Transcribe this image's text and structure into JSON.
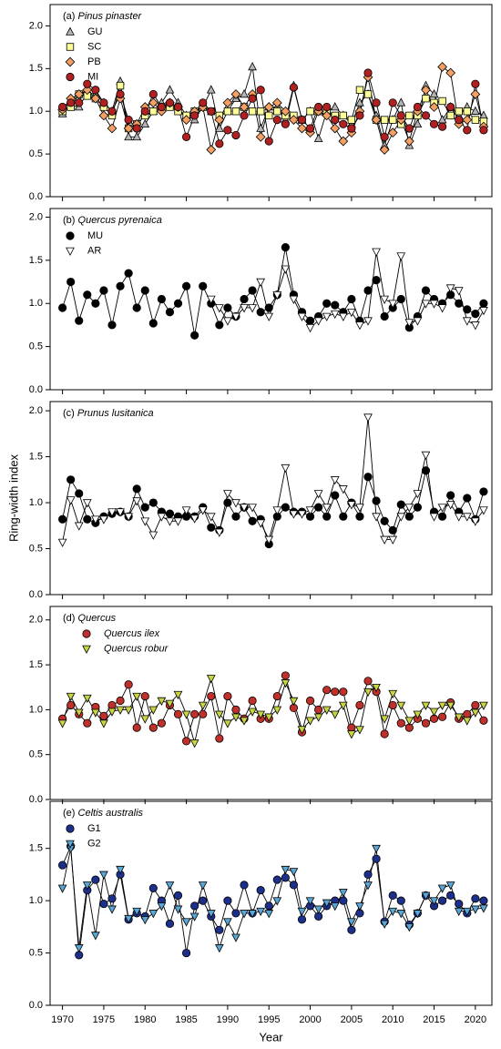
{
  "chart_data": [
    {
      "type": "line",
      "label": "(a)",
      "title": "Pinus pinaster",
      "x": [
        1970,
        1971,
        1972,
        1973,
        1974,
        1975,
        1976,
        1977,
        1978,
        1979,
        1980,
        1981,
        1982,
        1983,
        1984,
        1985,
        1986,
        1987,
        1988,
        1989,
        1990,
        1991,
        1992,
        1993,
        1994,
        1995,
        1996,
        1997,
        1998,
        1999,
        2000,
        2001,
        2002,
        2003,
        2004,
        2005,
        2006,
        2007,
        2008,
        2009,
        2010,
        2011,
        2012,
        2013,
        2014,
        2015,
        2016,
        2017,
        2018,
        2019,
        2020,
        2021
      ],
      "xlim": [
        1968.5,
        2022
      ],
      "ylim": [
        0,
        2.25
      ],
      "yticks": [
        {
          "value": 0,
          "label": "0.0"
        },
        {
          "value": 0.5,
          "label": "0.5"
        },
        {
          "value": 1,
          "label": "1.0"
        },
        {
          "value": 1.5,
          "label": "1.5"
        },
        {
          "value": 2,
          "label": "2.0"
        }
      ],
      "series": [
        {
          "name": "GU",
          "marker": "triangle-up",
          "color": "#b4b4b4",
          "values": [
            0.97,
            1.07,
            1.05,
            1.22,
            1.2,
            1.1,
            1.0,
            1.35,
            0.7,
            0.7,
            0.85,
            1.0,
            1.1,
            1.25,
            1.1,
            0.95,
            0.9,
            1.05,
            1.25,
            0.8,
            1.0,
            1.15,
            1.2,
            1.52,
            0.8,
            1.05,
            1.05,
            0.9,
            1.3,
            0.9,
            1.0,
            0.68,
            1.0,
            1.05,
            0.95,
            0.85,
            1.1,
            1.2,
            0.95,
            0.6,
            0.9,
            1.1,
            0.6,
            0.85,
            1.3,
            1.2,
            0.9,
            1.05,
            0.95,
            1.05,
            1.0,
            0.95
          ]
        },
        {
          "name": "SC",
          "marker": "square",
          "color": "#ffff99",
          "values": [
            1.0,
            1.05,
            1.2,
            1.18,
            1.15,
            1.05,
            0.95,
            1.3,
            0.8,
            0.85,
            0.95,
            1.0,
            1.05,
            1.05,
            1.0,
            0.95,
            1.0,
            1.05,
            1.0,
            0.95,
            1.0,
            1.0,
            1.05,
            1.0,
            1.0,
            0.95,
            1.0,
            0.95,
            0.95,
            0.9,
            1.0,
            1.0,
            1.0,
            0.95,
            0.95,
            0.9,
            1.25,
            1.2,
            0.9,
            0.9,
            0.9,
            0.85,
            0.95,
            0.95,
            1.15,
            1.1,
            1.12,
            0.95,
            1.0,
            1.0,
            0.9,
            0.88
          ]
        },
        {
          "name": "PB",
          "marker": "diamond",
          "color": "#f4a064",
          "values": [
            1.02,
            1.15,
            1.2,
            1.25,
            1.15,
            0.95,
            0.8,
            1.15,
            0.8,
            0.85,
            1.05,
            1.1,
            1.0,
            1.1,
            1.05,
            0.9,
            1.0,
            1.05,
            0.55,
            0.9,
            1.1,
            1.2,
            1.05,
            1.2,
            0.7,
            1.05,
            1.1,
            1.0,
            0.9,
            0.8,
            0.75,
            1.0,
            0.95,
            0.8,
            0.65,
            0.75,
            1.0,
            1.4,
            0.9,
            0.55,
            0.75,
            0.9,
            0.65,
            1.0,
            1.25,
            1.05,
            1.52,
            1.45,
            0.85,
            0.9,
            1.2,
            0.82
          ]
        },
        {
          "name": "MI",
          "marker": "circle",
          "color": "#b02020",
          "values": [
            1.05,
            1.1,
            1.1,
            1.32,
            1.25,
            1.1,
            1.0,
            1.2,
            0.9,
            0.8,
            1.0,
            1.2,
            1.05,
            1.1,
            1.05,
            0.7,
            0.95,
            1.1,
            1.0,
            0.62,
            0.78,
            0.72,
            0.95,
            1.15,
            1.25,
            0.65,
            0.9,
            0.85,
            1.28,
            0.9,
            0.8,
            1.05,
            1.05,
            0.9,
            0.85,
            0.8,
            0.95,
            1.45,
            1.1,
            0.7,
            1.1,
            0.95,
            0.8,
            1.05,
            0.95,
            0.85,
            0.82,
            1.05,
            0.9,
            0.78,
            1.32,
            0.78
          ]
        }
      ]
    },
    {
      "type": "line",
      "label": "(b)",
      "title": "Quercus pyrenaica",
      "x": [
        1970,
        1971,
        1972,
        1973,
        1974,
        1975,
        1976,
        1977,
        1978,
        1979,
        1980,
        1981,
        1982,
        1983,
        1984,
        1985,
        1986,
        1987,
        1988,
        1989,
        1990,
        1991,
        1992,
        1993,
        1994,
        1995,
        1996,
        1997,
        1998,
        1999,
        2000,
        2001,
        2002,
        2003,
        2004,
        2005,
        2006,
        2007,
        2008,
        2009,
        2010,
        2011,
        2012,
        2013,
        2014,
        2015,
        2016,
        2017,
        2018,
        2019,
        2020,
        2021
      ],
      "xlim": [
        1968.5,
        2022
      ],
      "ylim": [
        0,
        2.1
      ],
      "yticks": [
        {
          "value": 0,
          "label": "0.0"
        },
        {
          "value": 0.5,
          "label": "0.5"
        },
        {
          "value": 1,
          "label": "1.0"
        },
        {
          "value": 1.5,
          "label": "1.5"
        },
        {
          "value": 2,
          "label": "2.0"
        }
      ],
      "series": [
        {
          "name": "MU",
          "marker": "circle",
          "color": "#000000",
          "values": [
            0.95,
            1.25,
            0.8,
            1.1,
            1.0,
            1.15,
            0.75,
            1.2,
            1.35,
            0.95,
            1.15,
            0.77,
            1.05,
            0.9,
            1.0,
            1.2,
            0.63,
            1.2,
            1.0,
            0.75,
            0.95,
            0.85,
            1.05,
            1.15,
            0.9,
            0.95,
            1.1,
            1.65,
            1.1,
            0.9,
            0.8,
            0.85,
            1.0,
            0.98,
            0.9,
            1.05,
            0.8,
            1.15,
            1.27,
            0.85,
            0.95,
            1.05,
            0.72,
            0.85,
            1.15,
            1.05,
            1.0,
            1.1,
            1.0,
            0.93,
            0.88,
            1.0
          ]
        },
        {
          "name": "AR",
          "marker": "triangle-down",
          "color": "#ffffff",
          "values": [
            null,
            null,
            null,
            null,
            null,
            null,
            null,
            null,
            null,
            null,
            null,
            null,
            null,
            null,
            null,
            null,
            null,
            null,
            1.05,
            0.95,
            0.8,
            0.85,
            0.95,
            0.95,
            1.25,
            0.85,
            1.1,
            1.4,
            1.05,
            0.85,
            0.72,
            0.8,
            0.85,
            0.88,
            0.85,
            0.9,
            0.75,
            0.8,
            1.6,
            1.05,
            1.0,
            1.55,
            0.78,
            0.8,
            1.0,
            1.0,
            0.95,
            1.18,
            1.15,
            0.8,
            0.75,
            0.92
          ]
        }
      ]
    },
    {
      "type": "line",
      "label": "(c)",
      "title": "Prunus lusitanica",
      "ylabel": "Ring-width index",
      "x": [
        1970,
        1971,
        1972,
        1973,
        1974,
        1975,
        1976,
        1977,
        1978,
        1979,
        1980,
        1981,
        1982,
        1983,
        1984,
        1985,
        1986,
        1987,
        1988,
        1989,
        1990,
        1991,
        1992,
        1993,
        1994,
        1995,
        1996,
        1997,
        1998,
        1999,
        2000,
        2001,
        2002,
        2003,
        2004,
        2005,
        2006,
        2007,
        2008,
        2009,
        2010,
        2011,
        2012,
        2013,
        2014,
        2015,
        2016,
        2017,
        2018,
        2019,
        2020,
        2021
      ],
      "xlim": [
        1968.5,
        2022
      ],
      "ylim": [
        0,
        2.1
      ],
      "yticks": [
        {
          "value": 0,
          "label": "0.0"
        },
        {
          "value": 0.5,
          "label": "0.5"
        },
        {
          "value": 1,
          "label": "1.0"
        },
        {
          "value": 1.5,
          "label": "1.5"
        },
        {
          "value": 2,
          "label": "2.0"
        }
      ],
      "series": [
        {
          "marker": "circle",
          "color": "#000000",
          "values": [
            0.82,
            1.25,
            1.1,
            0.82,
            0.78,
            0.85,
            0.88,
            0.9,
            0.85,
            1.15,
            0.95,
            1.0,
            0.9,
            0.88,
            0.85,
            0.85,
            0.85,
            0.95,
            0.73,
            0.7,
            1.0,
            0.85,
            0.95,
            0.8,
            0.82,
            0.55,
            0.85,
            0.95,
            0.9,
            0.9,
            0.85,
            0.95,
            0.85,
            1.08,
            0.85,
            1.0,
            0.85,
            1.28,
            1.02,
            0.8,
            0.7,
            0.98,
            0.85,
            0.95,
            1.35,
            0.9,
            0.85,
            1.08,
            0.9,
            1.05,
            0.82,
            1.12
          ]
        },
        {
          "marker": "triangle-down",
          "color": "#ffffff",
          "values": [
            0.57,
            1.03,
            0.75,
            1.0,
            0.82,
            0.82,
            0.9,
            0.9,
            0.85,
            1.02,
            0.8,
            0.65,
            0.85,
            0.8,
            0.8,
            0.92,
            0.83,
            0.92,
            0.85,
            0.68,
            1.1,
            1.0,
            0.95,
            0.95,
            0.78,
            0.6,
            0.92,
            1.38,
            0.88,
            0.88,
            0.92,
            1.1,
            0.95,
            1.25,
            1.15,
            0.98,
            0.95,
            1.93,
            0.85,
            0.6,
            0.6,
            0.85,
            0.95,
            1.1,
            1.52,
            0.85,
            0.95,
            0.98,
            0.85,
            0.85,
            0.8,
            0.92
          ]
        }
      ]
    },
    {
      "type": "line",
      "label": "(d)",
      "title": "Quercus",
      "x": [
        1970,
        1971,
        1972,
        1973,
        1974,
        1975,
        1976,
        1977,
        1978,
        1979,
        1980,
        1981,
        1982,
        1983,
        1984,
        1985,
        1986,
        1987,
        1988,
        1989,
        1990,
        1991,
        1992,
        1993,
        1994,
        1995,
        1996,
        1997,
        1998,
        1999,
        2000,
        2001,
        2002,
        2003,
        2004,
        2005,
        2006,
        2007,
        2008,
        2009,
        2010,
        2011,
        2012,
        2013,
        2014,
        2015,
        2016,
        2017,
        2018,
        2019,
        2020,
        2021
      ],
      "xlim": [
        1968.5,
        2022
      ],
      "ylim": [
        0,
        2.15
      ],
      "legend_italic": true,
      "yticks": [
        {
          "value": 0,
          "label": "0.0"
        },
        {
          "value": 0.5,
          "label": "0.5"
        },
        {
          "value": 1,
          "label": "1.0"
        },
        {
          "value": 1.5,
          "label": "1.5"
        },
        {
          "value": 2,
          "label": "2.0"
        }
      ],
      "series": [
        {
          "name": "Quercus ilex",
          "marker": "circle",
          "color": "#c0302a",
          "values": [
            0.9,
            1.05,
            0.95,
            0.85,
            1.03,
            0.93,
            1.05,
            1.1,
            1.28,
            0.8,
            1.15,
            0.8,
            0.85,
            1.05,
            0.95,
            0.65,
            0.95,
            0.95,
            1.15,
            0.68,
            1.15,
            1.0,
            0.9,
            1.1,
            0.9,
            0.9,
            1.15,
            1.38,
            1.02,
            0.75,
            1.1,
            1.0,
            1.22,
            1.2,
            1.2,
            0.8,
            1.05,
            1.32,
            1.2,
            0.73,
            1.05,
            0.85,
            0.8,
            0.9,
            0.85,
            0.9,
            0.92,
            1.08,
            0.9,
            0.95,
            1.05,
            0.88
          ]
        },
        {
          "name": "Quercus robur",
          "marker": "triangle-down",
          "color": "#c8d444",
          "values": [
            0.85,
            1.15,
            0.97,
            1.13,
            0.97,
            0.85,
            0.98,
            1.0,
            1.0,
            1.15,
            0.9,
            1.0,
            1.1,
            1.07,
            1.17,
            0.95,
            0.63,
            1.05,
            1.35,
            0.95,
            0.85,
            0.92,
            0.88,
            0.98,
            0.95,
            0.92,
            1.0,
            1.3,
            1.1,
            0.78,
            0.88,
            0.92,
            1.0,
            0.95,
            1.05,
            0.73,
            0.78,
            1.2,
            1.25,
            0.9,
            1.18,
            1.05,
            0.88,
            0.95,
            1.05,
            0.98,
            1.05,
            1.05,
            0.92,
            0.88,
            0.97,
            1.05
          ]
        }
      ]
    },
    {
      "type": "line",
      "label": "(e)",
      "title": "Celtis australis",
      "xlabel": "Year",
      "x": [
        1970,
        1971,
        1972,
        1973,
        1974,
        1975,
        1976,
        1977,
        1978,
        1979,
        1980,
        1981,
        1982,
        1983,
        1984,
        1985,
        1986,
        1987,
        1988,
        1989,
        1990,
        1991,
        1992,
        1993,
        1994,
        1995,
        1996,
        1997,
        1998,
        1999,
        2000,
        2001,
        2002,
        2003,
        2004,
        2005,
        2006,
        2007,
        2008,
        2009,
        2010,
        2011,
        2012,
        2013,
        2014,
        2015,
        2016,
        2017,
        2018,
        2019,
        2020,
        2021
      ],
      "xlim": [
        1968.5,
        2022
      ],
      "ylim": [
        0,
        1.95
      ],
      "xticks": [
        1970,
        1975,
        1980,
        1985,
        1990,
        1995,
        2000,
        2005,
        2010,
        2015,
        2020
      ],
      "yticks": [
        {
          "value": 0,
          "label": "0.0"
        },
        {
          "value": 0.5,
          "label": "0.5"
        },
        {
          "value": 1,
          "label": "1.0"
        },
        {
          "value": 1.5,
          "label": "1.5"
        }
      ],
      "series": [
        {
          "name": "G1",
          "marker": "circle",
          "color": "#1c2f8a",
          "values": [
            1.34,
            1.52,
            0.48,
            1.1,
            1.2,
            0.97,
            1.02,
            1.25,
            0.82,
            0.88,
            0.85,
            1.12,
            1.0,
            0.78,
            1.05,
            0.5,
            0.95,
            1.0,
            0.85,
            0.72,
            1.0,
            0.88,
            1.15,
            0.88,
            1.1,
            0.95,
            1.2,
            1.22,
            1.15,
            0.82,
            0.95,
            0.85,
            0.95,
            1.0,
            1.0,
            0.72,
            0.88,
            1.25,
            1.4,
            0.8,
            1.05,
            1.0,
            0.77,
            0.88,
            1.05,
            0.95,
            1.0,
            1.05,
            0.97,
            0.88,
            1.02,
            1.0
          ]
        },
        {
          "name": "G2",
          "marker": "triangle-down",
          "color": "#5aa6d6",
          "values": [
            1.12,
            1.5,
            0.55,
            1.15,
            0.67,
            1.25,
            0.92,
            1.3,
            0.83,
            0.9,
            0.82,
            0.88,
            0.95,
            1.15,
            0.92,
            0.8,
            0.85,
            1.15,
            0.88,
            0.55,
            0.8,
            0.65,
            0.88,
            0.88,
            0.9,
            0.88,
            1.0,
            1.3,
            1.28,
            0.9,
            1.0,
            0.92,
            0.98,
            0.95,
            1.08,
            0.8,
            0.95,
            1.15,
            1.5,
            0.78,
            0.9,
            0.88,
            0.75,
            0.88,
            1.05,
            1.0,
            1.12,
            1.15,
            0.9,
            0.9,
            0.92,
            0.93
          ]
        }
      ]
    }
  ]
}
